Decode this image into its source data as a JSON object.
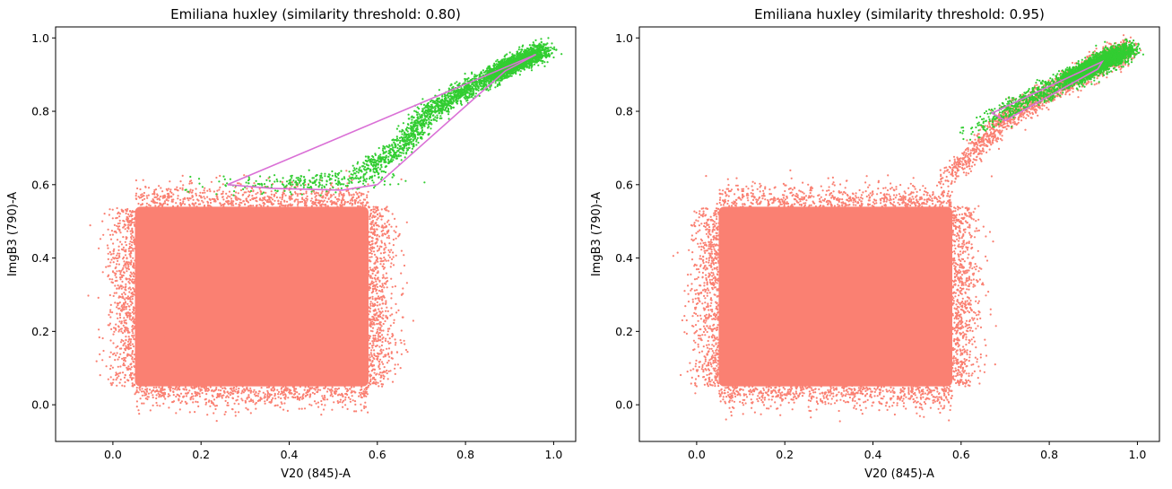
{
  "chart_data": [
    {
      "type": "scatter",
      "title": "Emiliana huxley (similarity threshold: 0.80)",
      "xlabel": "V20 (845)-A",
      "ylabel": "ImgB3 (790)-A",
      "xlim": [
        -0.13,
        1.05
      ],
      "ylim": [
        -0.1,
        1.03
      ],
      "xticks": [
        0.0,
        0.2,
        0.4,
        0.6,
        0.8,
        1.0
      ],
      "xtick_labels": [
        "0.0",
        "0.2",
        "0.4",
        "0.6",
        "0.8",
        "1.0"
      ],
      "yticks": [
        0.0,
        0.2,
        0.4,
        0.6,
        0.8,
        1.0
      ],
      "ytick_labels": [
        "0.0",
        "0.2",
        "0.4",
        "0.6",
        "0.8",
        "1.0"
      ],
      "grid": false,
      "series": [
        {
          "color": "#fa8072",
          "description_points": "dense cloud",
          "core_box": {
            "x": [
              0.05,
              0.58
            ],
            "y": [
              0.05,
              0.54
            ]
          },
          "sparse_extents": {
            "x": [
              -0.08,
              0.67
            ],
            "y": [
              -0.05,
              0.7
            ]
          }
        },
        {
          "color": "#32cd32",
          "band_points": [
            [
              0.2,
              0.6
            ],
            [
              0.4,
              0.6
            ],
            [
              0.55,
              0.62
            ],
            [
              0.65,
              0.7
            ],
            [
              0.72,
              0.8
            ],
            [
              0.8,
              0.86
            ],
            [
              0.9,
              0.92
            ],
            [
              0.98,
              0.97
            ]
          ]
        }
      ],
      "gate_polygon": {
        "color": "#da70d6",
        "points": [
          [
            0.26,
            0.6
          ],
          [
            0.96,
            0.955
          ],
          [
            0.89,
            0.91
          ],
          [
            0.6,
            0.6
          ],
          [
            0.52,
            0.585
          ],
          [
            0.36,
            0.59
          ]
        ]
      }
    },
    {
      "type": "scatter",
      "title": "Emiliana huxley (similarity threshold: 0.95)",
      "xlabel": "V20 (845)-A",
      "ylabel": "ImgB3 (790)-A",
      "xlim": [
        -0.13,
        1.05
      ],
      "ylim": [
        -0.1,
        1.03
      ],
      "xticks": [
        0.0,
        0.2,
        0.4,
        0.6,
        0.8,
        1.0
      ],
      "xtick_labels": [
        "0.0",
        "0.2",
        "0.4",
        "0.6",
        "0.8",
        "1.0"
      ],
      "yticks": [
        0.0,
        0.2,
        0.4,
        0.6,
        0.8,
        1.0
      ],
      "ytick_labels": [
        "0.0",
        "0.2",
        "0.4",
        "0.6",
        "0.8",
        "1.0"
      ],
      "grid": false,
      "series": [
        {
          "color": "#fa8072",
          "description_points": "dense cloud plus diagonal band",
          "core_box": {
            "x": [
              0.05,
              0.58
            ],
            "y": [
              0.05,
              0.54
            ]
          },
          "band_points": [
            [
              0.55,
              0.6
            ],
            [
              0.62,
              0.68
            ],
            [
              0.7,
              0.78
            ],
            [
              0.8,
              0.85
            ],
            [
              0.9,
              0.92
            ],
            [
              0.98,
              0.97
            ]
          ]
        },
        {
          "color": "#32cd32",
          "band_points": [
            [
              0.6,
              0.72
            ],
            [
              0.68,
              0.79
            ],
            [
              0.75,
              0.83
            ],
            [
              0.85,
              0.89
            ],
            [
              0.92,
              0.93
            ],
            [
              0.98,
              0.97
            ]
          ]
        }
      ],
      "gate_polygon": {
        "color": "#da70d6",
        "points": [
          [
            0.67,
            0.795
          ],
          [
            0.92,
            0.935
          ],
          [
            0.91,
            0.915
          ],
          [
            0.7,
            0.775
          ]
        ]
      }
    }
  ]
}
